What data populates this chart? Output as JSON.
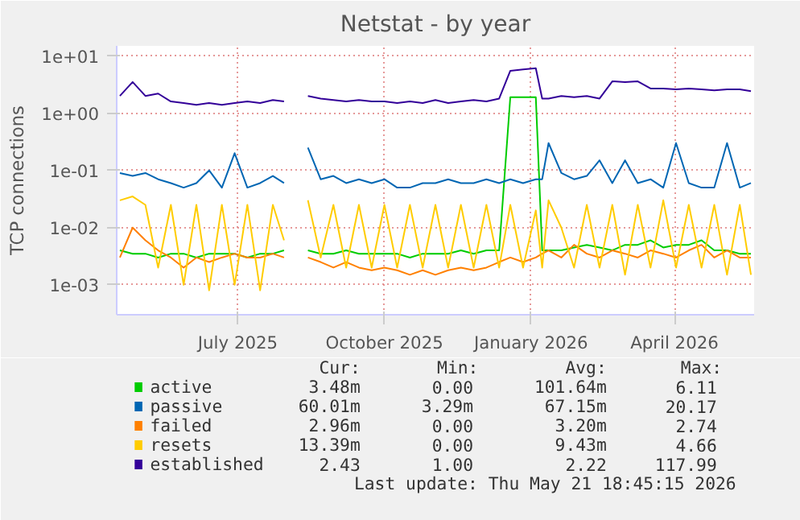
{
  "chart_data": {
    "type": "line",
    "title": "Netstat - by year",
    "ylabel": "TCP connections",
    "x": [
      "2025-04-18",
      "2025-04-26",
      "2025-05-04",
      "2025-05-12",
      "2025-05-20",
      "2025-05-28",
      "2025-06-05",
      "2025-06-13",
      "2025-06-21",
      "2025-06-29",
      "2025-07-07",
      "2025-07-15",
      "2025-07-23",
      "2025-07-30",
      "2025-08-06",
      "2025-08-14",
      "2025-08-22",
      "2025-08-30",
      "2025-09-07",
      "2025-09-15",
      "2025-09-23",
      "2025-10-01",
      "2025-10-09",
      "2025-10-17",
      "2025-10-25",
      "2025-11-02",
      "2025-11-10",
      "2025-11-18",
      "2025-11-26",
      "2025-12-04",
      "2025-12-12",
      "2025-12-19",
      "2025-12-27",
      "2026-01-04",
      "2026-01-08",
      "2026-01-12",
      "2026-01-20",
      "2026-01-28",
      "2026-02-05",
      "2026-02-13",
      "2026-02-21",
      "2026-03-01",
      "2026-03-09",
      "2026-03-17",
      "2026-03-25",
      "2026-04-02",
      "2026-04-10",
      "2026-04-18",
      "2026-04-26",
      "2026-05-04",
      "2026-05-12",
      "2026-05-19"
    ],
    "series": [
      {
        "name": "active",
        "color": "#00cc00",
        "values": [
          0.004,
          0.0035,
          0.0035,
          0.003,
          0.0035,
          0.0035,
          0.003,
          0.0035,
          0.0035,
          0.0035,
          0.003,
          0.0035,
          0.0035,
          0.004,
          null,
          0.004,
          0.0035,
          0.0035,
          0.004,
          0.0035,
          0.0035,
          0.0035,
          0.0035,
          0.003,
          0.0035,
          0.0035,
          0.0035,
          0.004,
          0.0035,
          0.004,
          0.004,
          1.9,
          1.9,
          1.9,
          0.004,
          0.004,
          0.004,
          0.0045,
          0.005,
          0.0045,
          0.004,
          0.005,
          0.005,
          0.006,
          0.0045,
          0.005,
          0.005,
          0.006,
          0.004,
          0.004,
          0.0035,
          0.0035
        ]
      },
      {
        "name": "passive",
        "color": "#0066b3",
        "values": [
          0.09,
          0.08,
          0.09,
          0.07,
          0.06,
          0.05,
          0.06,
          0.1,
          0.05,
          0.2,
          0.05,
          0.06,
          0.08,
          0.06,
          null,
          0.25,
          0.07,
          0.08,
          0.06,
          0.07,
          0.06,
          0.07,
          0.05,
          0.05,
          0.06,
          0.06,
          0.07,
          0.06,
          0.06,
          0.07,
          0.06,
          0.07,
          0.06,
          0.07,
          0.07,
          0.3,
          0.09,
          0.07,
          0.08,
          0.15,
          0.06,
          0.15,
          0.06,
          0.07,
          0.05,
          0.3,
          0.06,
          0.05,
          0.05,
          0.3,
          0.05,
          0.06
        ]
      },
      {
        "name": "failed",
        "color": "#ff8000",
        "values": [
          0.003,
          0.01,
          0.006,
          0.004,
          0.003,
          0.002,
          0.003,
          0.0025,
          0.003,
          0.0035,
          0.003,
          0.003,
          0.0035,
          0.003,
          null,
          0.003,
          0.0025,
          0.002,
          0.0025,
          0.002,
          0.0018,
          0.002,
          0.0018,
          0.0015,
          0.0018,
          0.0015,
          0.0018,
          0.002,
          0.0018,
          0.002,
          0.0025,
          0.003,
          0.0025,
          0.003,
          0.0035,
          0.004,
          0.003,
          0.005,
          0.0035,
          0.003,
          0.004,
          0.0035,
          0.003,
          0.004,
          0.0035,
          0.003,
          0.004,
          0.005,
          0.003,
          0.004,
          0.003,
          0.003
        ]
      },
      {
        "name": "resets",
        "color": "#ffcc00",
        "values": [
          0.03,
          0.035,
          0.025,
          0.002,
          0.025,
          0.001,
          0.025,
          0.0008,
          0.025,
          0.001,
          0.025,
          0.0008,
          0.025,
          0.006,
          null,
          0.03,
          0.003,
          0.025,
          0.002,
          0.025,
          0.002,
          0.025,
          0.002,
          0.025,
          0.002,
          0.025,
          0.002,
          0.025,
          0.002,
          0.025,
          0.002,
          0.025,
          0.002,
          0.02,
          0.002,
          0.03,
          0.01,
          0.002,
          0.025,
          0.002,
          0.025,
          0.0015,
          0.025,
          0.002,
          0.03,
          0.002,
          0.025,
          0.002,
          0.025,
          0.0015,
          0.025,
          0.0015
        ]
      },
      {
        "name": "established",
        "color": "#330099",
        "values": [
          2.0,
          3.5,
          2.0,
          2.2,
          1.6,
          1.5,
          1.4,
          1.5,
          1.4,
          1.5,
          1.6,
          1.5,
          1.7,
          1.6,
          null,
          2.0,
          1.8,
          1.7,
          1.6,
          1.7,
          1.6,
          1.6,
          1.5,
          1.6,
          1.5,
          1.7,
          1.5,
          1.6,
          1.7,
          1.6,
          1.8,
          5.5,
          5.8,
          6.1,
          1.8,
          1.8,
          2.0,
          1.9,
          2.0,
          1.8,
          3.6,
          3.5,
          3.6,
          2.7,
          2.7,
          2.6,
          2.7,
          2.6,
          2.5,
          2.6,
          2.6,
          2.43
        ]
      }
    ],
    "log": "y",
    "xlim": [
      "2025-04-16",
      "2026-05-21"
    ],
    "ylim": [
      0.0003,
      15
    ],
    "xticks": [
      {
        "value": "2025-07",
        "label": "July 2025"
      },
      {
        "value": "2025-10",
        "label": "October 2025"
      },
      {
        "value": "2026-01",
        "label": "January 2026"
      },
      {
        "value": "2026-04",
        "label": "April 2026"
      }
    ],
    "yticks": [
      {
        "value": 0.001,
        "label": "1e-03"
      },
      {
        "value": 0.01,
        "label": "1e-02"
      },
      {
        "value": 0.1,
        "label": "1e-01"
      },
      {
        "value": 1,
        "label": "1e+00"
      },
      {
        "value": 10,
        "label": "1e+01"
      }
    ],
    "grid": true,
    "legend": "bottom",
    "annotations": [
      "Cur:",
      "Min:",
      "Avg:",
      "Max:",
      "3.48m",
      "0.00",
      "101.64m",
      "6.11",
      "60.01m",
      "3.29m",
      "67.15m",
      "20.17",
      "2.96m",
      "0.00",
      "3.20m",
      "2.74",
      "13.39m",
      "0.00",
      "9.43m",
      "4.66",
      "2.43",
      "1.00",
      "2.22",
      "117.99",
      "Last update: Thu May 21 18:45:15 2026"
    ]
  }
}
